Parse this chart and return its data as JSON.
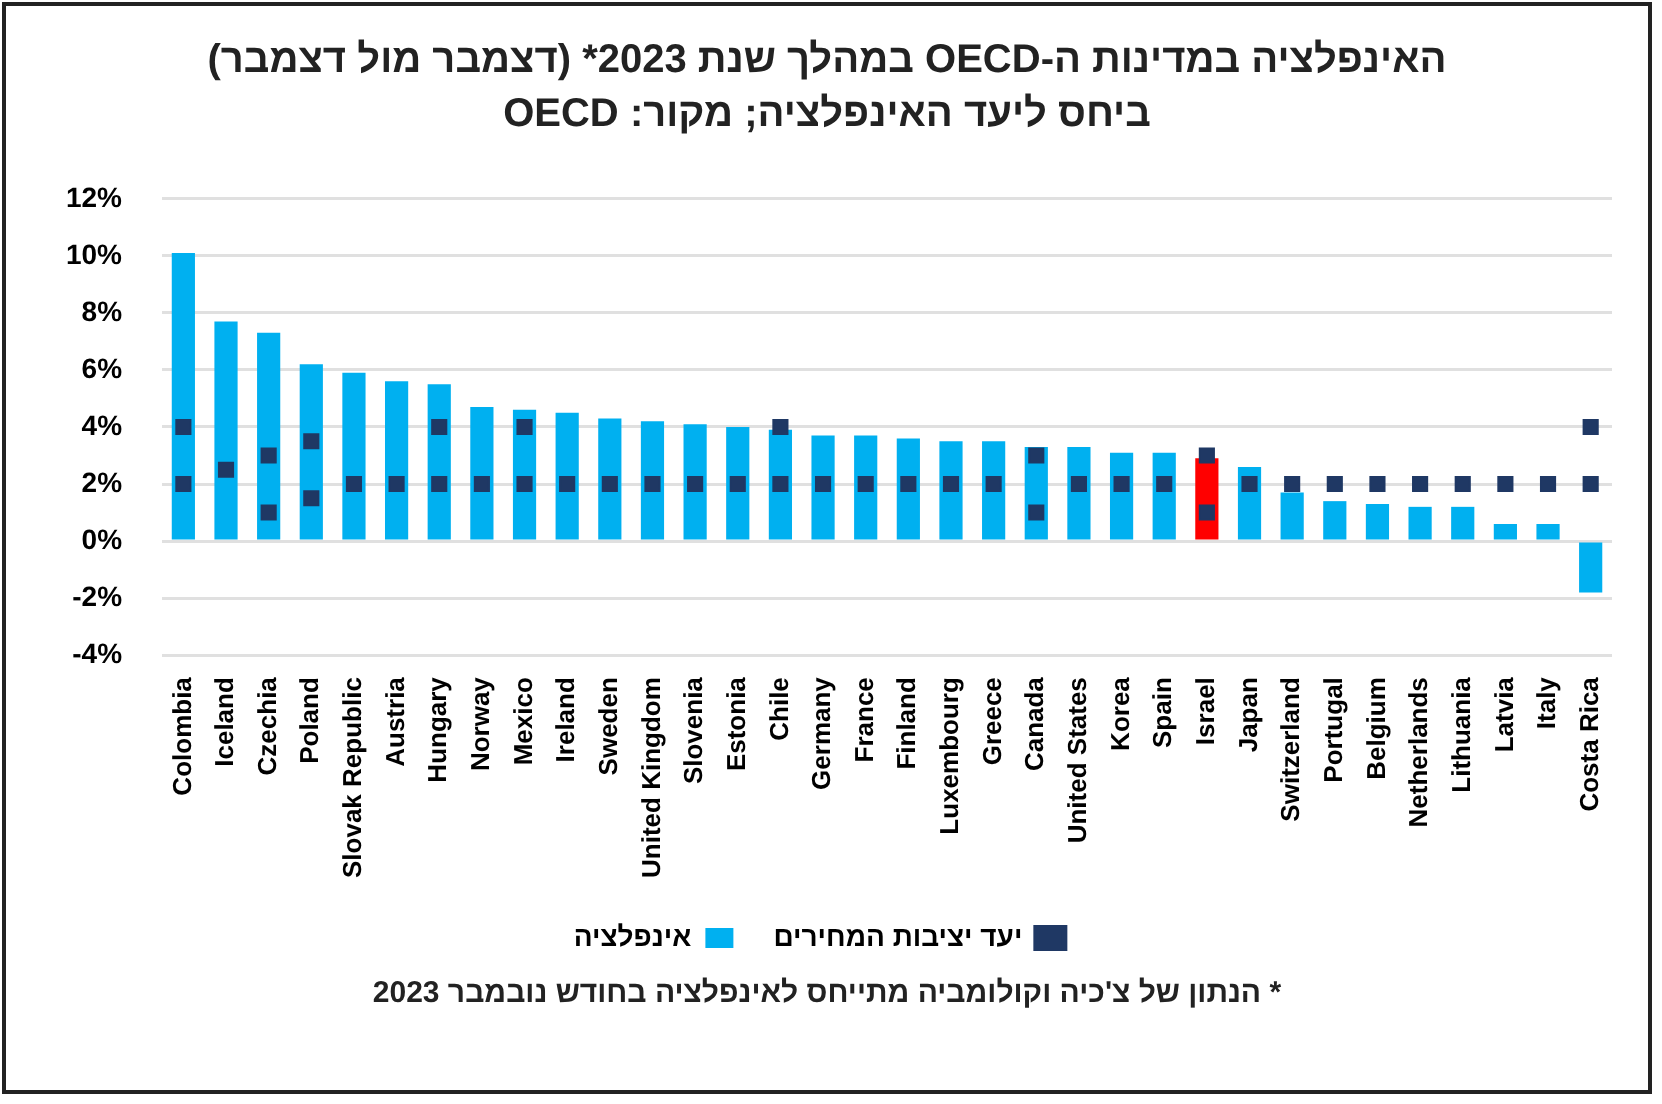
{
  "chart_data": {
    "type": "bar",
    "title": "האינפלציה במדינות ה-OECD במהלך שנת 2023* (דצמבר מול דצמבר) ביחס ליעד האינפלציה; מקור: OECD",
    "categories": [
      "Colombia",
      "Iceland",
      "Czechia",
      "Poland",
      "Slovak Republic",
      "Austria",
      "Hungary",
      "Norway",
      "Mexico",
      "Ireland",
      "Sweden",
      "United Kingdom",
      "Slovenia",
      "Estonia",
      "Chile",
      "Germany",
      "France",
      "Finland",
      "Luxembourg",
      "Greece",
      "Canada",
      "United States",
      "Korea",
      "Spain",
      "Israel",
      "Japan",
      "Switzerland",
      "Portugal",
      "Belgium",
      "Netherlands",
      "Lithuania",
      "Latvia",
      "Italy",
      "Costa Rica"
    ],
    "series": [
      {
        "name": "יעד יציבות המחירים",
        "type": "scatter",
        "marker": "square",
        "x": [
          "Colombia",
          "Iceland",
          "Czechia",
          "Poland",
          "Slovak Republic",
          "Austria",
          "Hungary",
          "Norway",
          "Mexico",
          "Ireland",
          "Sweden",
          "United Kingdom",
          "Slovenia",
          "Estonia",
          "Chile",
          "Germany",
          "France",
          "Finland",
          "Luxembourg",
          "Greece",
          "Canada",
          "United States",
          "Korea",
          "Spain",
          "Israel",
          "Japan",
          "Switzerland",
          "Portugal",
          "Belgium",
          "Netherlands",
          "Lithuania",
          "Latvia",
          "Italy",
          "Costa Rica"
        ],
        "color": "#1f3864",
        "values": [
          2,
          2.5,
          1,
          1.5,
          2,
          2,
          2,
          2,
          2,
          2,
          2,
          2,
          2,
          2,
          2,
          2,
          2,
          2,
          2,
          2,
          1,
          2,
          2,
          2,
          1,
          2,
          2,
          2,
          2,
          2,
          2,
          2,
          2,
          2
        ]
      },
      {
        "type": "scatter",
        "marker": "square",
        "x": [
          "Colombia",
          "Iceland",
          "Czechia",
          "Poland",
          "Slovak Republic",
          "Austria",
          "Hungary",
          "Norway",
          "Mexico",
          "Ireland",
          "Sweden",
          "United Kingdom",
          "Slovenia",
          "Estonia",
          "Chile",
          "Germany",
          "France",
          "Finland",
          "Luxembourg",
          "Greece",
          "Canada",
          "United States",
          "Korea",
          "Spain",
          "Israel",
          "Japan",
          "Switzerland",
          "Portugal",
          "Belgium",
          "Netherlands",
          "Lithuania",
          "Latvia",
          "Italy",
          "Costa Rica"
        ],
        "color": "#1f3864",
        "values": [
          4,
          null,
          3,
          3.5,
          null,
          null,
          4,
          null,
          4,
          null,
          null,
          null,
          null,
          null,
          4,
          null,
          null,
          null,
          null,
          null,
          3,
          null,
          null,
          null,
          3,
          null,
          null,
          null,
          null,
          null,
          null,
          null,
          null,
          4
        ]
      },
      {
        "name": "אינפלציה",
        "color": "#00b0f0",
        "colors": [
          "#00b0f0",
          "#00b0f0",
          "#00b0f0",
          "#00b0f0",
          "#00b0f0",
          "#00b0f0",
          "#00b0f0",
          "#00b0f0",
          "#00b0f0",
          "#00b0f0",
          "#00b0f0",
          "#00b0f0",
          "#00b0f0",
          "#00b0f0",
          "#00b0f0",
          "#00b0f0",
          "#00b0f0",
          "#00b0f0",
          "#00b0f0",
          "#00b0f0",
          "#00b0f0",
          "#00b0f0",
          "#00b0f0",
          "#00b0f0",
          "#ff0000",
          "#00b0f0",
          "#00b0f0",
          "#00b0f0",
          "#00b0f0",
          "#00b0f0",
          "#00b0f0",
          "#00b0f0",
          "#00b0f0",
          "#00b0f0"
        ],
        "values": [
          10.1,
          7.7,
          7.3,
          6.2,
          5.9,
          5.6,
          5.5,
          4.7,
          4.6,
          4.5,
          4.3,
          4.2,
          4.1,
          4.0,
          3.9,
          3.7,
          3.7,
          3.6,
          3.5,
          3.5,
          3.3,
          3.3,
          3.1,
          3.1,
          2.9,
          2.6,
          1.7,
          1.4,
          1.3,
          1.2,
          1.2,
          0.6,
          0.6,
          -1.8
        ]
      }
    ],
    "ylim": [
      -4,
      12
    ],
    "yticks": [
      {
        "value": -4,
        "label": "-4%"
      },
      {
        "value": -2,
        "label": "-2%"
      },
      {
        "value": 0,
        "label": "0%"
      },
      {
        "value": 2,
        "label": "2%"
      },
      {
        "value": 4,
        "label": "4%"
      },
      {
        "value": 6,
        "label": "6%"
      },
      {
        "value": 8,
        "label": "8%"
      },
      {
        "value": 10,
        "label": "10%"
      },
      {
        "value": 12,
        "label": "12%"
      }
    ],
    "grid": "y",
    "legend": "bottom",
    "annotations": [
      "* הנתון של צ'כיה וקולומביה מתייחס לאינפלציה בחודש נובמבר 2023"
    ]
  }
}
